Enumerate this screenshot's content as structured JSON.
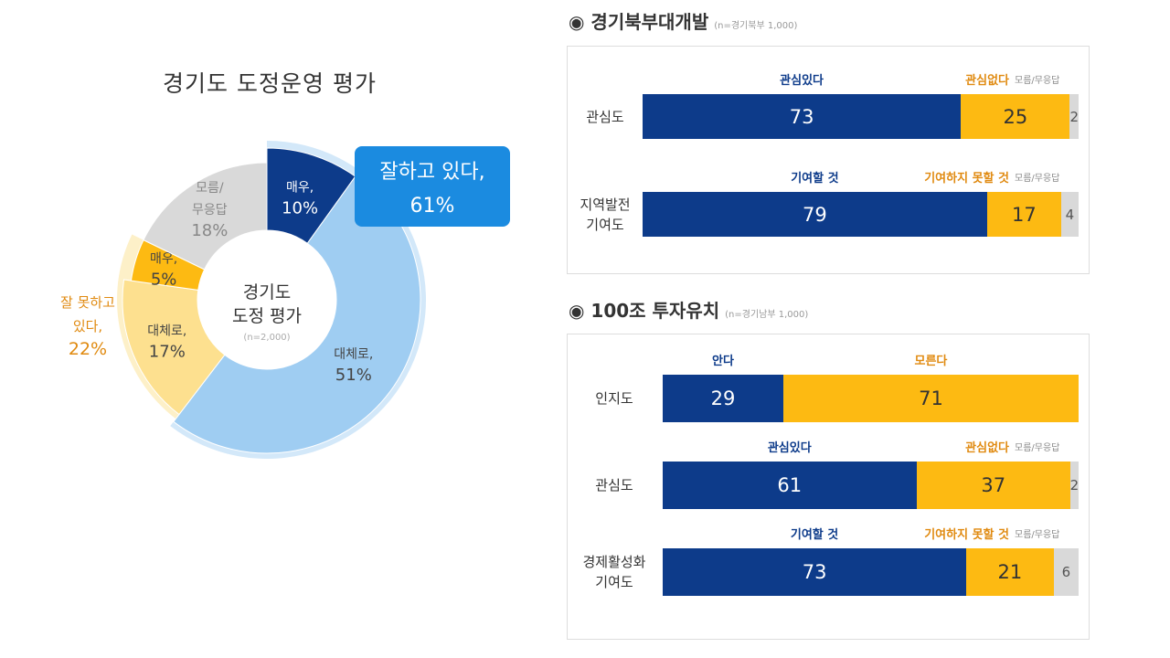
{
  "colors": {
    "navy": "#0d3b8a",
    "lightblue": "#9fcdf2",
    "halo": "#d3e8f9",
    "yellow": "#fdba12",
    "lightyellow": "#fde08f",
    "gray": "#d9d9d9",
    "orange": "#e08a10",
    "callout": "#1b8be0"
  },
  "chart_data": [
    {
      "type": "pie",
      "title": "경기도 도정운영 평가",
      "center_label": [
        "경기도",
        "도정 평가"
      ],
      "n_label": "(n=2,000)",
      "slices": [
        {
          "label": "매우,",
          "value": 10,
          "text": "10%",
          "color": "#0d3b8a"
        },
        {
          "label": "대체로,",
          "value": 51,
          "text": "51%",
          "color": "#9fcdf2"
        },
        {
          "label": "대체로,",
          "value": 17,
          "text": "17%",
          "color": "#fde08f"
        },
        {
          "label": "매우,",
          "value": 5,
          "text": "5%",
          "color": "#fdba12"
        },
        {
          "label": "모름/ 무응답",
          "value": 18,
          "text": "18%",
          "color": "#d9d9d9"
        }
      ],
      "groups": [
        {
          "label": "잘하고 있다,",
          "text": "61%",
          "value": 61
        },
        {
          "label": "잘 못하고 있다,",
          "text": "22%",
          "value": 22
        }
      ]
    },
    {
      "type": "bar",
      "title": "경기북부대개발",
      "n_label": "(n=경기북부 1,000)",
      "rows": [
        {
          "label": "관심도",
          "heads": [
            "관심있다",
            "관심없다",
            "모름/무응답"
          ],
          "values": [
            73,
            25,
            2
          ]
        },
        {
          "label": "지역발전 기여도",
          "heads": [
            "기여할 것",
            "기여하지 못할 것",
            "모름/무응답"
          ],
          "values": [
            79,
            17,
            4
          ]
        }
      ]
    },
    {
      "type": "bar",
      "title": "100조 투자유치",
      "n_label": "(n=경기남부 1,000)",
      "rows": [
        {
          "label": "인지도",
          "heads": [
            "안다",
            "모른다",
            ""
          ],
          "values": [
            29,
            71,
            0
          ]
        },
        {
          "label": "관심도",
          "heads": [
            "관심있다",
            "관심없다",
            "모름/무응답"
          ],
          "values": [
            61,
            37,
            2
          ]
        },
        {
          "label": "경제활성화 기여도",
          "heads": [
            "기여할 것",
            "기여하지 못할 것",
            "모름/무응답"
          ],
          "values": [
            73,
            21,
            6
          ]
        }
      ]
    }
  ]
}
